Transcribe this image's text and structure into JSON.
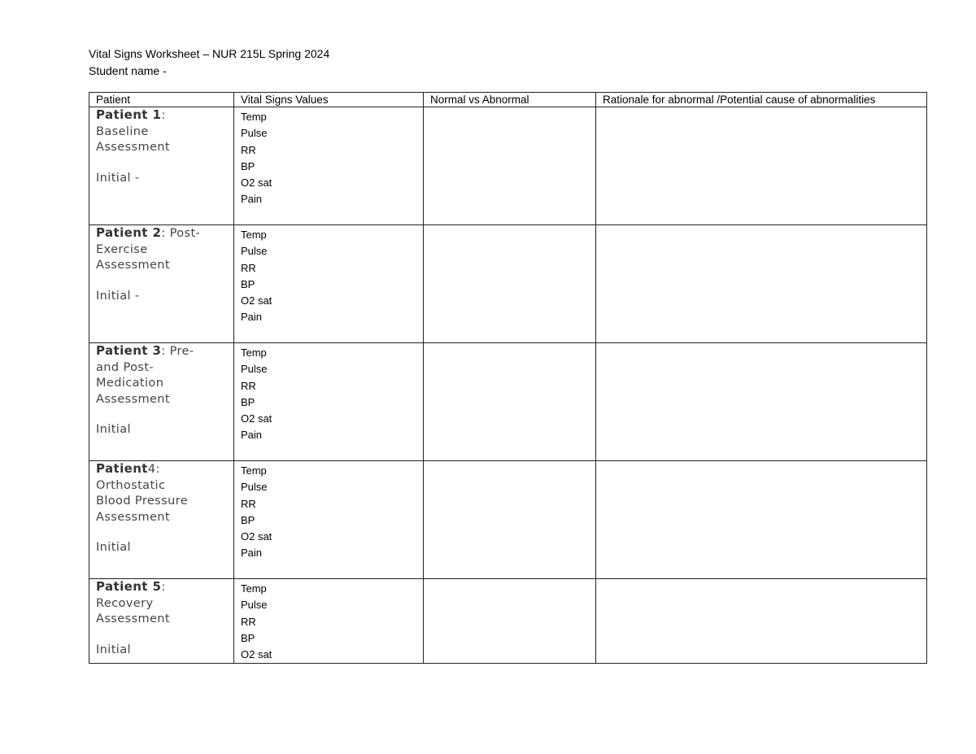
{
  "document": {
    "title": "Vital Signs Worksheet – NUR 215L   Spring 2024",
    "student_name_label": "Student name -"
  },
  "table": {
    "headers": [
      "Patient",
      "Vital Signs Values",
      "Normal vs Abnormal",
      "Rationale for abnormal /Potential cause of abnormalities"
    ],
    "rows": [
      {
        "patient_label": "Patient 1",
        "lines": [
          ": ",
          "Baseline",
          "Assessment"
        ],
        "initial": "Initial -",
        "vitals": [
          "Temp",
          "Pulse",
          "RR",
          "BP",
          "O2 sat",
          "Pain"
        ]
      },
      {
        "patient_label": "Patient 2",
        "lines": [
          ": Post-",
          "Exercise",
          "Assessment"
        ],
        "initial": "Initial -",
        "vitals": [
          "Temp",
          "Pulse",
          "RR",
          "BP",
          "O2 sat",
          "Pain"
        ]
      },
      {
        "patient_label": "Patient 3",
        "lines": [
          ": Pre-",
          "and Post-",
          "Medication",
          "Assessment"
        ],
        "initial": "Initial",
        "vitals": [
          "Temp",
          "Pulse",
          "RR",
          "BP",
          "O2 sat",
          "Pain"
        ]
      },
      {
        "patient_label": "Patient",
        "lines": [
          "4: Orthostatic",
          "Blood Pressure",
          "Assessment"
        ],
        "initial": "Initial",
        "vitals": [
          "Temp",
          "Pulse",
          "RR",
          "BP",
          "O2 sat",
          "Pain"
        ]
      },
      {
        "patient_label": "Patient 5",
        "lines": [
          ": ",
          "Recovery",
          "Assessment"
        ],
        "initial": "Initial",
        "vitals": [
          "Temp",
          "Pulse",
          "RR",
          "BP",
          "O2 sat"
        ]
      }
    ]
  }
}
